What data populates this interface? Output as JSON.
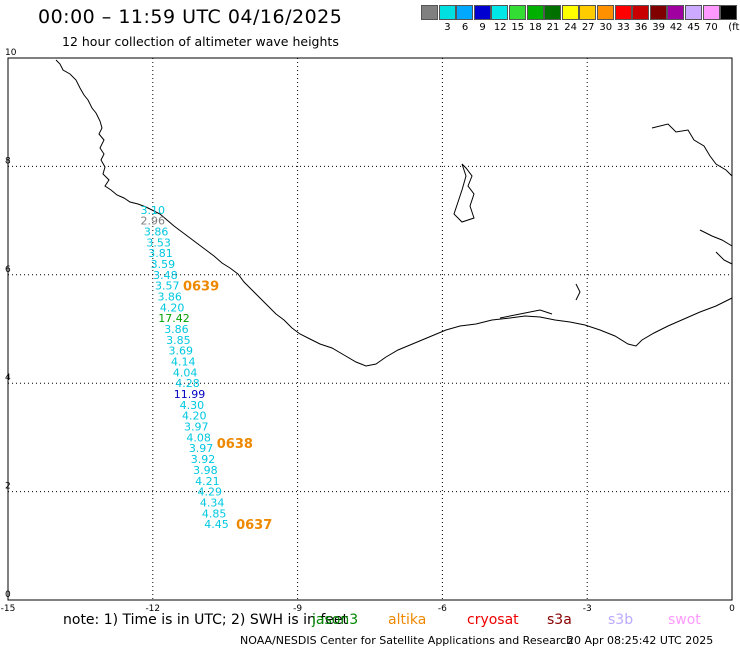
{
  "header": {
    "title": "00:00 – 11:59 UTC 04/16/2025",
    "subtitle": "12 hour collection of altimeter wave heights"
  },
  "color_scale": {
    "unit": "(ft)",
    "swatches": [
      {
        "color": "#808080",
        "label": ""
      },
      {
        "color": "#00e0e0",
        "label": "3"
      },
      {
        "color": "#00a8ff",
        "label": "6"
      },
      {
        "color": "#0000d0",
        "label": "9"
      },
      {
        "color": "#00e8e8",
        "label": "12"
      },
      {
        "color": "#33dd33",
        "label": "15"
      },
      {
        "color": "#00b000",
        "label": "18"
      },
      {
        "color": "#007000",
        "label": "21"
      },
      {
        "color": "#ffff00",
        "label": "24"
      },
      {
        "color": "#ffcc00",
        "label": "27"
      },
      {
        "color": "#ff9000",
        "label": "30"
      },
      {
        "color": "#ff0000",
        "label": "33"
      },
      {
        "color": "#c80000",
        "label": "36"
      },
      {
        "color": "#800000",
        "label": "39"
      },
      {
        "color": "#a000a0",
        "label": "42"
      },
      {
        "color": "#ccaaff",
        "label": "45"
      },
      {
        "color": "#ff99ff",
        "label": "70"
      },
      {
        "color": "#000000",
        "label": ""
      }
    ]
  },
  "axes": {
    "lon_ticks": [
      "-15",
      "-12",
      "-9",
      "-6",
      "-3",
      "0"
    ],
    "lat_ticks": [
      "0",
      "2",
      "4",
      "6",
      "8",
      "10"
    ],
    "lon_range": [
      -15,
      0
    ],
    "lat_range": [
      0,
      10
    ]
  },
  "track": {
    "observations": [
      {
        "lon": -12.0,
        "lat": 7.2,
        "value": "3.10",
        "color": "#00c8e0"
      },
      {
        "lon": -12.0,
        "lat": 7.0,
        "value": "2.96",
        "color": "#808080"
      },
      {
        "lon": -11.93,
        "lat": 6.8,
        "value": "3.86",
        "color": "#00c8e0"
      },
      {
        "lon": -11.88,
        "lat": 6.6,
        "value": "3.53",
        "color": "#00c8e0"
      },
      {
        "lon": -11.84,
        "lat": 6.4,
        "value": "3.81",
        "color": "#00c8e0"
      },
      {
        "lon": -11.79,
        "lat": 6.2,
        "value": "3.59",
        "color": "#00c8e0"
      },
      {
        "lon": -11.74,
        "lat": 6.0,
        "value": "3.48",
        "color": "#00c8e0"
      },
      {
        "lon": -11.7,
        "lat": 5.8,
        "value": "3.57",
        "color": "#00c8e0"
      },
      {
        "lon": -11.65,
        "lat": 5.6,
        "value": "3.86",
        "color": "#00c8e0"
      },
      {
        "lon": -11.6,
        "lat": 5.4,
        "value": "4.20",
        "color": "#00c8e0"
      },
      {
        "lon": -11.56,
        "lat": 5.2,
        "value": "17.42",
        "color": "#00a000"
      },
      {
        "lon": -11.51,
        "lat": 5.0,
        "value": "3.86",
        "color": "#00c8e0"
      },
      {
        "lon": -11.47,
        "lat": 4.8,
        "value": "3.85",
        "color": "#00c8e0"
      },
      {
        "lon": -11.42,
        "lat": 4.6,
        "value": "3.69",
        "color": "#00c8e0"
      },
      {
        "lon": -11.37,
        "lat": 4.4,
        "value": "4.14",
        "color": "#00c8e0"
      },
      {
        "lon": -11.33,
        "lat": 4.2,
        "value": "4.04",
        "color": "#00c8e0"
      },
      {
        "lon": -11.28,
        "lat": 4.0,
        "value": "4.28",
        "color": "#00c8e0"
      },
      {
        "lon": -11.24,
        "lat": 3.8,
        "value": "11.99",
        "color": "#0000c0"
      },
      {
        "lon": -11.19,
        "lat": 3.6,
        "value": "4.30",
        "color": "#00c8e0"
      },
      {
        "lon": -11.14,
        "lat": 3.4,
        "value": "4.20",
        "color": "#00c8e0"
      },
      {
        "lon": -11.1,
        "lat": 3.2,
        "value": "3.97",
        "color": "#00c8e0"
      },
      {
        "lon": -11.05,
        "lat": 3.0,
        "value": "4.08",
        "color": "#00c8e0"
      },
      {
        "lon": -11.0,
        "lat": 2.8,
        "value": "3.97",
        "color": "#00c8e0"
      },
      {
        "lon": -10.96,
        "lat": 2.6,
        "value": "3.92",
        "color": "#00c8e0"
      },
      {
        "lon": -10.91,
        "lat": 2.4,
        "value": "3.98",
        "color": "#00c8e0"
      },
      {
        "lon": -10.87,
        "lat": 2.2,
        "value": "4.21",
        "color": "#00c8e0"
      },
      {
        "lon": -10.82,
        "lat": 2.0,
        "value": "4.29",
        "color": "#00c8e0"
      },
      {
        "lon": -10.77,
        "lat": 1.8,
        "value": "4.34",
        "color": "#00c8e0"
      },
      {
        "lon": -10.73,
        "lat": 1.6,
        "value": "4.85",
        "color": "#00c8e0"
      },
      {
        "lon": -10.68,
        "lat": 1.4,
        "value": "4.45",
        "color": "#00c8e0"
      }
    ],
    "time_labels": [
      {
        "lon": -11.0,
        "lat": 5.8,
        "text": "0639",
        "color": "#ee8800"
      },
      {
        "lon": -10.3,
        "lat": 2.9,
        "text": "0638",
        "color": "#ee8800"
      },
      {
        "lon": -9.9,
        "lat": 1.4,
        "text": "0637",
        "color": "#ee8800"
      }
    ]
  },
  "footer": {
    "note": "note: 1) Time is in UTC; 2) SWH is in feet",
    "satellites": [
      {
        "name": "jason3",
        "color": "#008800"
      },
      {
        "name": "altika",
        "color": "#ee8800"
      },
      {
        "name": "cryosat",
        "color": "#ee0000"
      },
      {
        "name": "s3a",
        "color": "#880000"
      },
      {
        "name": "s3b",
        "color": "#bbaaff"
      },
      {
        "name": "swot",
        "color": "#ff99ff"
      }
    ],
    "credit": "NOAA/NESDIS Center for Satellite Applications and Research",
    "timestamp": "20 Apr 08:25:42 UTC 2025"
  }
}
